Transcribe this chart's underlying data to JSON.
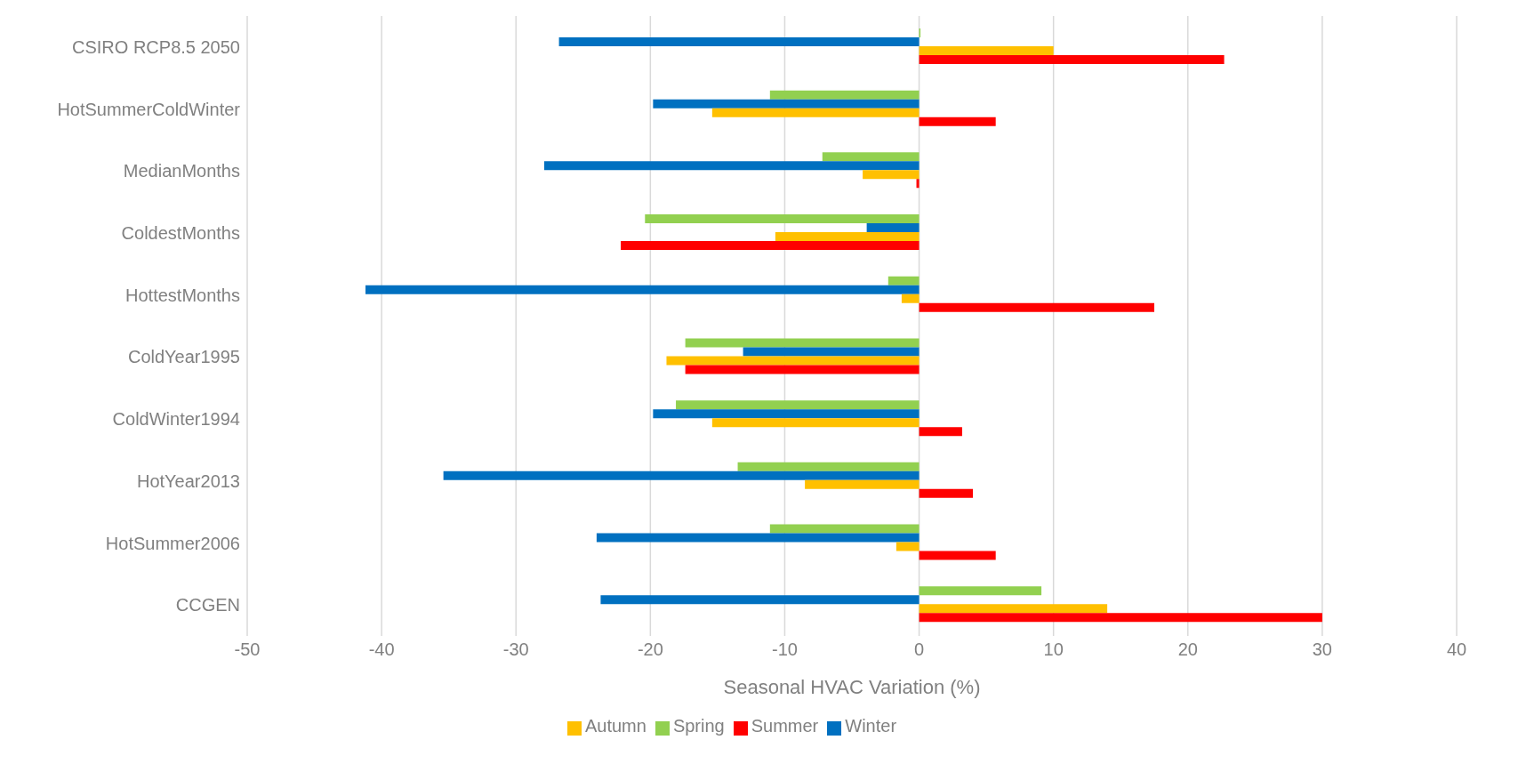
{
  "chart_data": {
    "type": "bar",
    "orientation": "horizontal",
    "xlabel": "Seasonal HVAC Variation (%)",
    "categories": [
      "CSIRO RCP8.5 2050",
      "HotSummerColdWinter",
      "MedianMonths",
      "ColdestMonths",
      "HottestMonths",
      "ColdYear1995",
      "ColdWinter1994",
      "HotYear2013",
      "HotSummer2006",
      "CCGEN"
    ],
    "series": [
      {
        "name": "Spring",
        "color": "#92d050",
        "values": [
          0.1,
          -11.1,
          -7.2,
          -20.4,
          -2.3,
          -17.4,
          -18.1,
          -13.5,
          -11.1,
          9.1
        ]
      },
      {
        "name": "Winter",
        "color": "#0070c0",
        "values": [
          -26.8,
          -19.8,
          -27.9,
          -3.9,
          -41.2,
          -13.1,
          -19.8,
          -35.4,
          -24.0,
          -23.7
        ]
      },
      {
        "name": "Autumn",
        "color": "#ffc000",
        "values": [
          10.0,
          -15.4,
          -4.2,
          -10.7,
          -1.3,
          -18.8,
          -15.4,
          -8.5,
          -1.7,
          14.0
        ]
      },
      {
        "name": "Summer",
        "color": "#ff0000",
        "values": [
          22.7,
          5.7,
          -0.2,
          -22.2,
          17.5,
          -17.4,
          3.2,
          4.0,
          5.7,
          30.0
        ]
      }
    ],
    "xlim": [
      -50,
      40
    ],
    "xticks": [
      -50,
      -40,
      -30,
      -20,
      -10,
      0,
      10,
      20,
      30,
      40
    ],
    "grid": "x",
    "legend": "bottom"
  }
}
